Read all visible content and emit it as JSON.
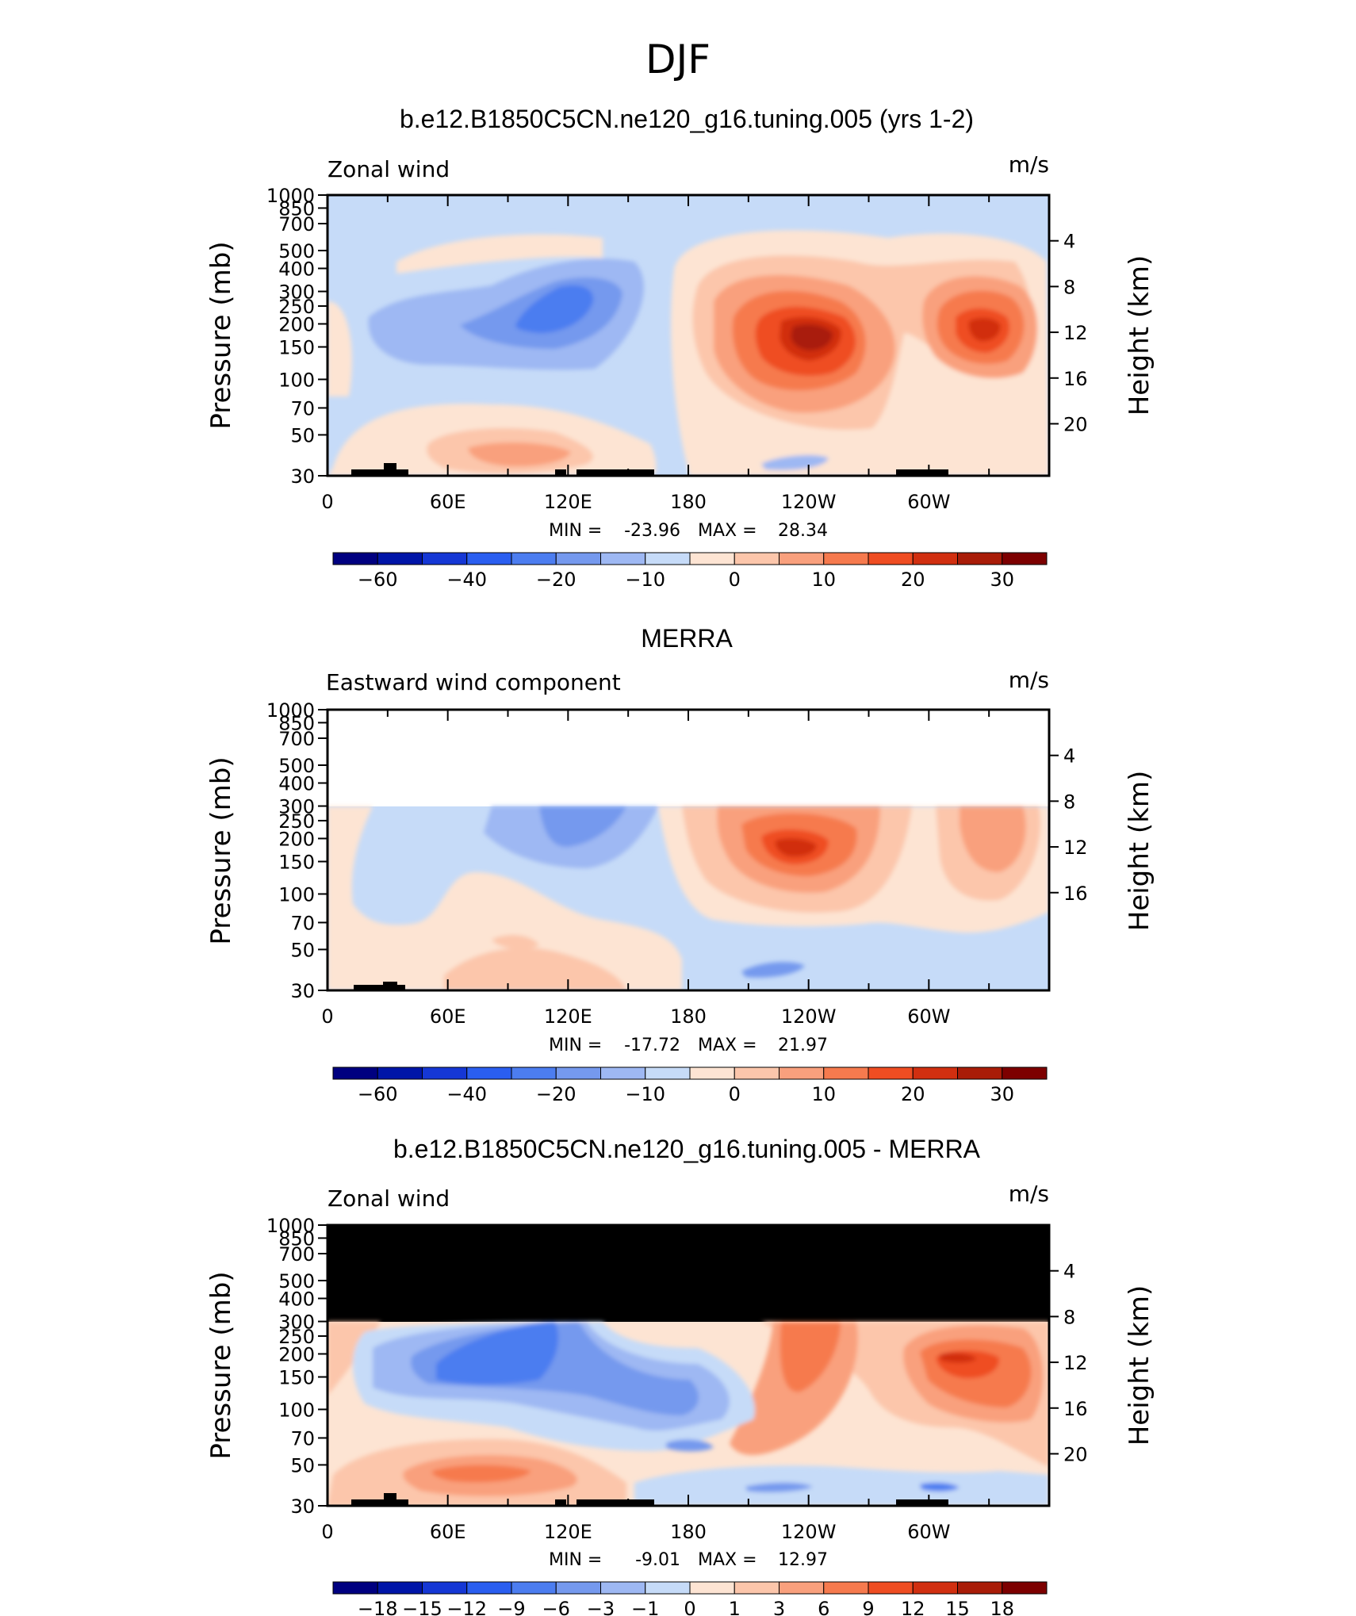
{
  "figure": {
    "title": "DJF"
  },
  "panels": [
    {
      "id": "model",
      "title": "b.e12.B1850C5CN.ne120_g16.tuning.005 (yrs 1-2)",
      "left_label": "Zonal wind",
      "right_label": "m/s",
      "y_axis_label": "Pressure (mb)",
      "y2_axis_label": "Height (km)",
      "stats": {
        "min_label": "MIN =",
        "min": "-23.96",
        "max_label": "MAX =",
        "max": "28.34"
      }
    },
    {
      "id": "obs",
      "title": "MERRA",
      "left_label": "Eastward wind component",
      "right_label": "m/s",
      "y_axis_label": "Pressure (mb)",
      "y2_axis_label": "Height (km)",
      "stats": {
        "min_label": "MIN =",
        "min": "-17.72",
        "max_label": "MAX =",
        "max": "21.97"
      }
    },
    {
      "id": "diff",
      "title": "b.e12.B1850C5CN.ne120_g16.tuning.005 - MERRA",
      "left_label": "Zonal wind",
      "right_label": "m/s",
      "y_axis_label": "Pressure (mb)",
      "y2_axis_label": "Height (km)",
      "stats": {
        "min_label": "MIN =",
        "min": "-9.01",
        "max_label": "MAX =",
        "max": "12.97"
      }
    }
  ],
  "chart_data": [
    {
      "type": "heatmap",
      "title": "b.e12.B1850C5CN.ne120_g16.tuning.005 (yrs 1-2)",
      "variable": "Zonal wind",
      "units": "m/s",
      "x_ticks": [
        "0",
        "60E",
        "120E",
        "180",
        "120W",
        "60W"
      ],
      "x_range": [
        0,
        360
      ],
      "y_ticks": [
        "30",
        "50",
        "70",
        "100",
        "150",
        "200",
        "250",
        "300",
        "400",
        "500",
        "700",
        "850",
        "1000"
      ],
      "y_range_mb": [
        1000,
        30
      ],
      "y_scale": "log",
      "y2_ticks": [
        "20",
        "16",
        "12",
        "8",
        "4"
      ],
      "stats": {
        "min": -23.96,
        "max": 28.34
      },
      "colorbar": {
        "ticks": [
          "-60",
          "-40",
          "-20",
          "-10",
          "0",
          "10",
          "20",
          "30"
        ]
      },
      "features": [
        {
          "kind": "max",
          "lon": 238,
          "p_mb": 170,
          "value": 28.34
        },
        {
          "kind": "local max",
          "lon": 324,
          "p_mb": 165,
          "value": 25
        },
        {
          "kind": "min",
          "lon": 120,
          "p_mb": 130,
          "value": -23.96
        }
      ]
    },
    {
      "type": "heatmap",
      "title": "MERRA",
      "variable": "Eastward wind component",
      "units": "m/s",
      "x_ticks": [
        "0",
        "60E",
        "120E",
        "180",
        "120W",
        "60W"
      ],
      "x_range": [
        0,
        360
      ],
      "y_ticks": [
        "30",
        "50",
        "70",
        "100",
        "150",
        "200",
        "250",
        "300",
        "400",
        "500",
        "700",
        "850",
        "1000"
      ],
      "y_range_mb": [
        1000,
        30
      ],
      "y_scale": "log",
      "y2_ticks": [
        "16",
        "12",
        "8",
        "4"
      ],
      "data_top_mb": 100,
      "stats": {
        "min": -17.72,
        "max": 21.97
      },
      "colorbar": {
        "ticks": [
          "-60",
          "-40",
          "-20",
          "-10",
          "0",
          "10",
          "20",
          "30"
        ]
      },
      "features": [
        {
          "kind": "max",
          "lon": 238,
          "p_mb": 170,
          "value": 21.97
        },
        {
          "kind": "local max",
          "lon": 330,
          "p_mb": 165,
          "value": 17
        },
        {
          "kind": "min",
          "lon": 122,
          "p_mb": 120,
          "value": -17.72
        }
      ]
    },
    {
      "type": "heatmap",
      "title": "b.e12.B1850C5CN.ne120_g16.tuning.005 - MERRA",
      "variable": "Zonal wind",
      "units": "m/s",
      "x_ticks": [
        "0",
        "60E",
        "120E",
        "180",
        "120W",
        "60W"
      ],
      "x_range": [
        0,
        360
      ],
      "y_ticks": [
        "30",
        "50",
        "70",
        "100",
        "150",
        "200",
        "250",
        "300",
        "400",
        "500",
        "700",
        "850",
        "1000"
      ],
      "y_range_mb": [
        1000,
        30
      ],
      "y_scale": "log",
      "y2_ticks": [
        "20",
        "16",
        "12",
        "8",
        "4"
      ],
      "masked_above_mb": 100,
      "stats": {
        "min": -9.01,
        "max": 12.97
      },
      "colorbar": {
        "ticks": [
          "-18",
          "-15",
          "-12",
          "-9",
          "-6",
          "-3",
          "-1",
          "0",
          "1",
          "3",
          "6",
          "9",
          "12",
          "15",
          "18"
        ]
      },
      "features": [
        {
          "kind": "max",
          "lon": 320,
          "p_mb": 165,
          "value": 12.97
        },
        {
          "kind": "min",
          "lon": 80,
          "p_mb": 175,
          "value": -9.01
        }
      ]
    }
  ],
  "colors": {
    "scale": [
      "#000080",
      "#0015a8",
      "#1537d5",
      "#2a5ef0",
      "#4c7df0",
      "#7599ee",
      "#9eb8f3",
      "#c6dbf8",
      "#fde4d3",
      "#fcc6ab",
      "#f9a07d",
      "#f67a4e",
      "#ef4d22",
      "#d12f10",
      "#a91c08",
      "#7d0000"
    ],
    "topography": "#000000",
    "mask": "#000000"
  }
}
